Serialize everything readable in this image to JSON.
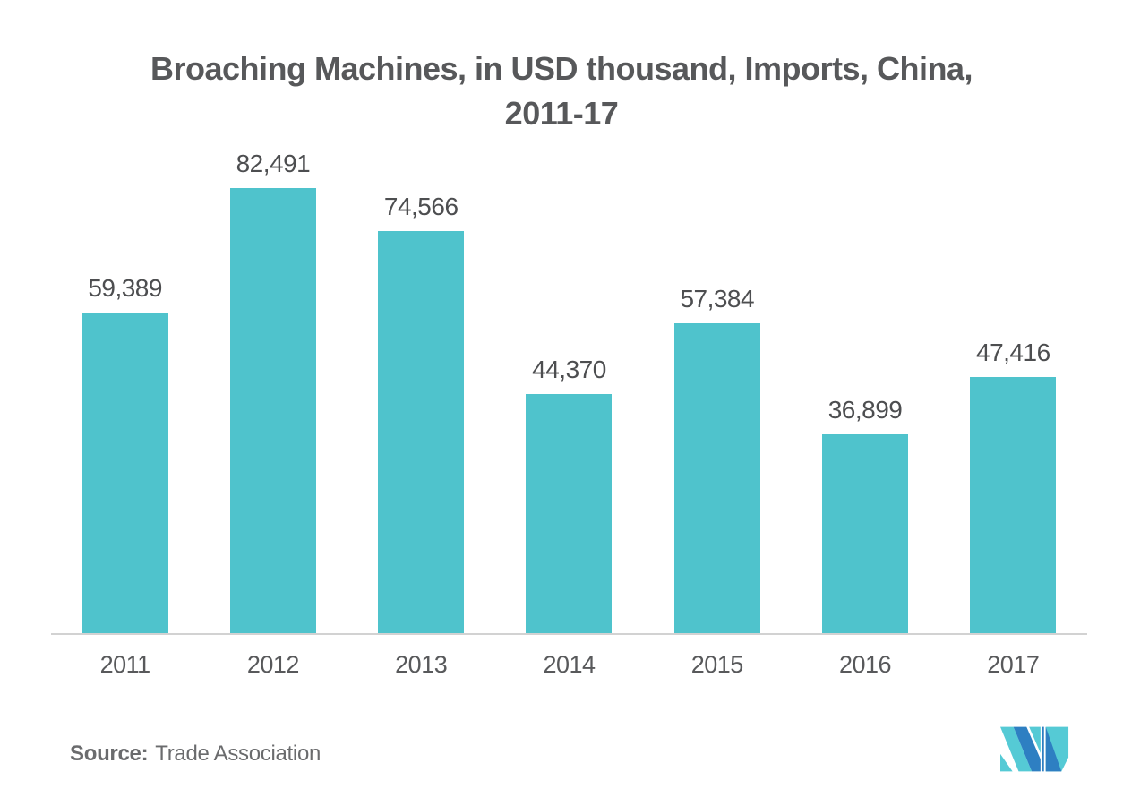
{
  "title": {
    "line1": "Broaching Machines, in USD thousand, Imports, China,",
    "line2": "2011-17"
  },
  "chart_data": {
    "type": "bar",
    "title": "Broaching Machines, in USD thousand, Imports, China, 2011-17",
    "categories": [
      "2011",
      "2012",
      "2013",
      "2014",
      "2015",
      "2016",
      "2017"
    ],
    "values": [
      59389,
      82491,
      74566,
      44370,
      57384,
      36899,
      47416
    ],
    "value_labels": [
      "59,389",
      "82,491",
      "74,566",
      "44,370",
      "57,384",
      "36,899",
      "47,416"
    ],
    "xlabel": "",
    "ylabel": "",
    "ylim": [
      0,
      90000
    ],
    "grid": false,
    "legend": "none",
    "value_labels_position": "above-bars",
    "bar_color": "#4FC3CC"
  },
  "source": {
    "label": "Source:",
    "text": "Trade Association"
  },
  "logo": {
    "name": "mordor-intelligence-logo",
    "teal": "#55CAD5",
    "blue": "#2E7FC2"
  },
  "colors": {
    "background": "#FFFFFF",
    "bar": "#4FC3CC",
    "title_text": "#57585A",
    "value_label_text": "#4D4E50",
    "axis_label_text": "#58595B",
    "axis_line": "#D2D2D2",
    "source_text": "#6A6B6D"
  }
}
